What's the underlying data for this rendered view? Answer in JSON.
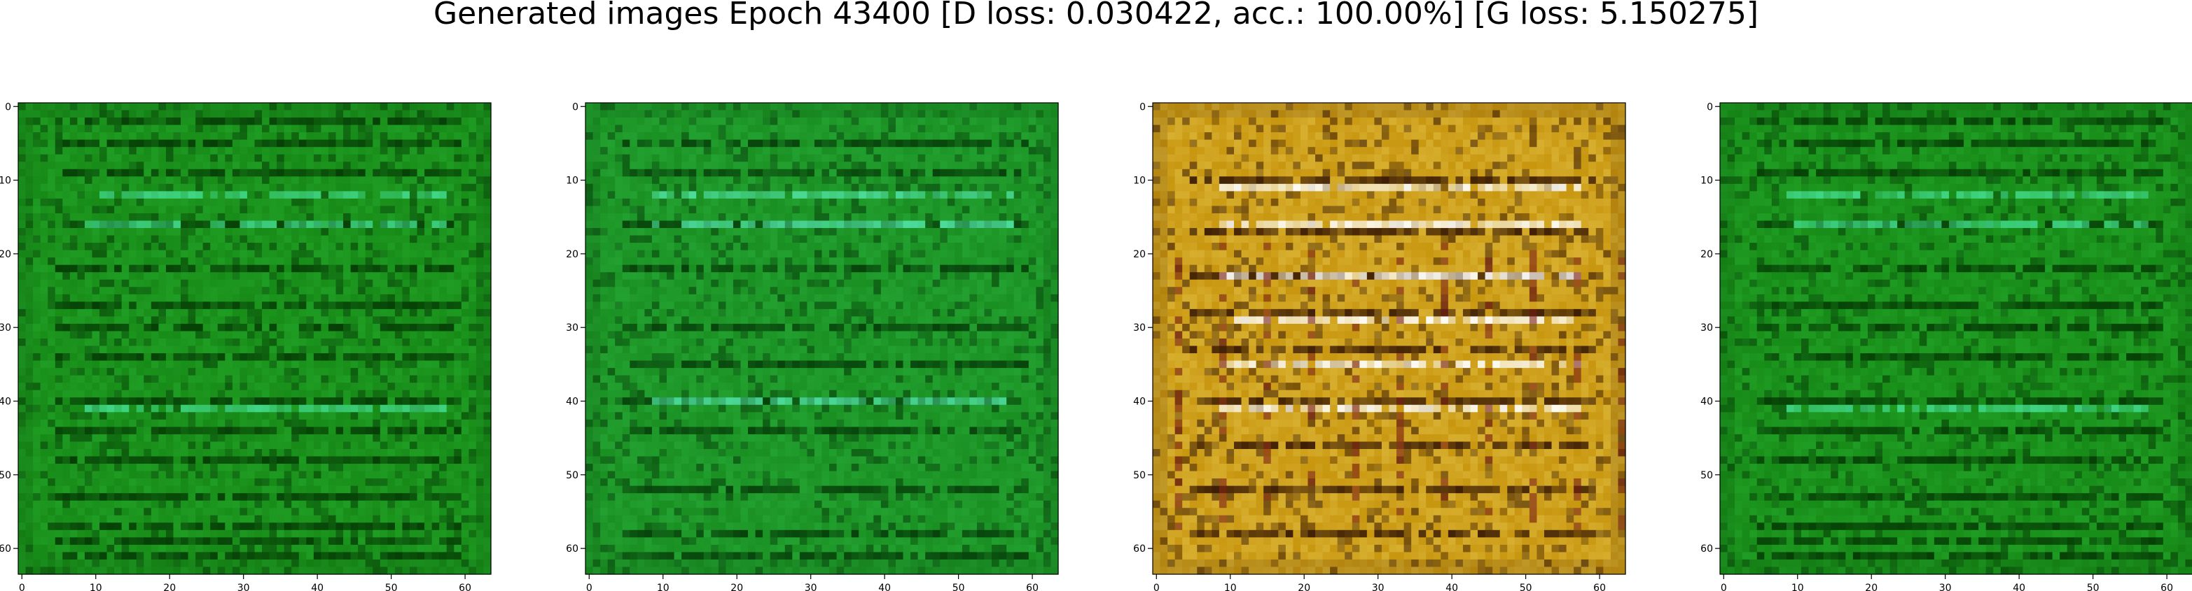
{
  "title": "Generated images Epoch 43400 [D loss: 0.030422, acc.: 100.00%] [G loss: 5.150275]",
  "chart_data": [
    {
      "type": "heatmap",
      "x_ticks": [
        0,
        10,
        20,
        30,
        40,
        50,
        60
      ],
      "y_ticks": [
        0,
        10,
        20,
        30,
        40,
        50,
        60
      ],
      "xlim": [
        -0.5,
        63.5
      ],
      "ylim": [
        63.5,
        -0.5
      ],
      "grid_size": 64,
      "colors": {
        "base": "#178a17",
        "dark": "#053d05",
        "light": "#2fbf3a",
        "accent": "#42d98a"
      },
      "stripe_rows_dark": [
        2,
        5,
        9,
        16,
        22,
        27,
        30,
        34,
        40,
        44,
        48,
        53,
        57,
        59,
        61
      ],
      "stripe_rows_light": [
        12,
        16,
        41
      ]
    },
    {
      "type": "heatmap",
      "x_ticks": [
        0,
        10,
        20,
        30,
        40,
        50,
        60
      ],
      "y_ticks": [
        0,
        10,
        20,
        30,
        40,
        50,
        60
      ],
      "xlim": [
        -0.5,
        63.5
      ],
      "ylim": [
        63.5,
        -0.5
      ],
      "grid_size": 64,
      "colors": {
        "base": "#1a8f22",
        "dark": "#063f0a",
        "light": "#33c24a",
        "accent": "#4fe0a0"
      },
      "stripe_rows_dark": [
        5,
        9,
        16,
        22,
        30,
        35,
        40,
        44,
        52,
        58,
        61
      ],
      "stripe_rows_light": [
        12,
        16,
        40
      ]
    },
    {
      "type": "heatmap",
      "x_ticks": [
        0,
        10,
        20,
        30,
        40,
        50,
        60
      ],
      "y_ticks": [
        0,
        10,
        20,
        30,
        40,
        50,
        60
      ],
      "xlim": [
        -0.5,
        63.5
      ],
      "ylim": [
        63.5,
        -0.5
      ],
      "grid_size": 64,
      "colors": {
        "base": "#c8960f",
        "dark": "#3a1a05",
        "light": "#f3dc6a",
        "accent": "#ffffff"
      },
      "stripe_rows_dark": [
        10,
        17,
        23,
        28,
        33,
        40,
        46,
        52,
        58
      ],
      "stripe_rows_light": [
        11,
        16,
        23,
        29,
        35,
        41
      ]
    },
    {
      "type": "heatmap",
      "x_ticks": [
        0,
        10,
        20,
        30,
        40,
        50,
        60
      ],
      "y_ticks": [
        0,
        10,
        20,
        30,
        40,
        50,
        60
      ],
      "xlim": [
        -0.5,
        63.5
      ],
      "ylim": [
        63.5,
        -0.5
      ],
      "grid_size": 64,
      "colors": {
        "base": "#178a17",
        "dark": "#053d05",
        "light": "#2fbf3a",
        "accent": "#42d98a"
      },
      "stripe_rows_dark": [
        2,
        5,
        9,
        16,
        22,
        27,
        30,
        34,
        40,
        44,
        48,
        53,
        57,
        59,
        61
      ],
      "stripe_rows_light": [
        12,
        16,
        41
      ]
    }
  ]
}
